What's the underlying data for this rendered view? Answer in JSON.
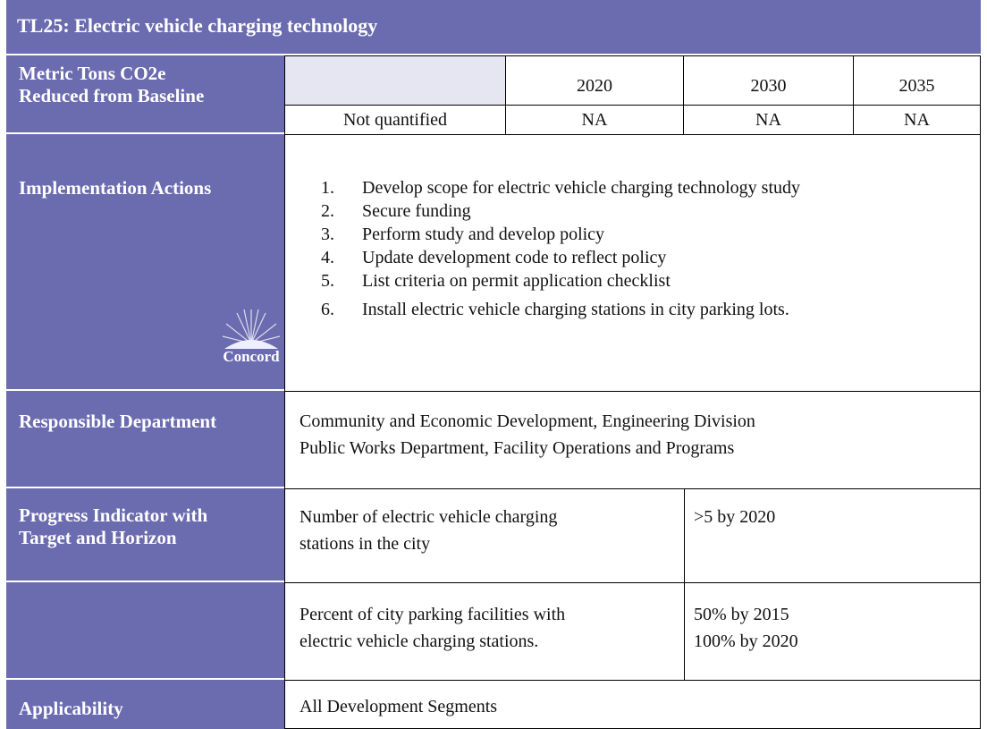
{
  "title": "TL25: Electric vehicle charging technology",
  "metric": {
    "label": [
      "Metric Tons CO2e",
      "Reduced from Baseline"
    ],
    "years": [
      "2020",
      "2030",
      "2035"
    ],
    "values": [
      "Not quantified",
      "NA",
      "NA",
      "NA"
    ]
  },
  "implementation": {
    "label": "Implementation Actions",
    "actions": [
      {
        "number": "1.",
        "text": "Develop scope for electric vehicle charging technology study"
      },
      {
        "number": "2.",
        "text": "Secure funding"
      },
      {
        "number": "3.",
        "text": "Perform study and develop policy"
      },
      {
        "number": "4.",
        "text": "Update development code to reflect policy"
      },
      {
        "number": "5.",
        "text": "List criteria on permit application checklist"
      },
      {
        "number": "6.",
        "text": "Install electric vehicle charging stations in city parking lots."
      }
    ]
  },
  "logo": "Concord",
  "responsible": {
    "label": "Responsible Department",
    "lines": [
      "Community and Economic Development, Engineering Division",
      "Public Works Department, Facility Operations and Programs"
    ]
  },
  "progress": {
    "label": [
      "Progress Indicator with",
      "Target and Horizon"
    ],
    "indicators": [
      {
        "indicator": [
          "Number of electric vehicle charging",
          "stations in the city"
        ],
        "target": [
          ">5 by 2020"
        ]
      },
      {
        "indicator": [
          "Percent of city parking facilities with",
          "electric vehicle charging stations."
        ],
        "target": [
          "50% by 2015",
          "100% by 2020"
        ]
      }
    ]
  },
  "applicability": {
    "label": "Applicability",
    "value": "All Development Segments"
  }
}
